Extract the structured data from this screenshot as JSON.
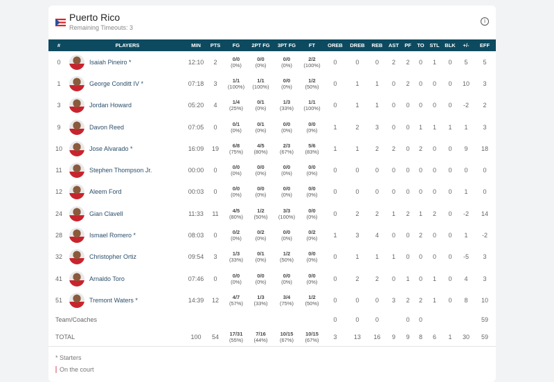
{
  "team": {
    "name": "Puerto Rico",
    "timeouts": "Remaining Timeouts: 3"
  },
  "columns": [
    "#",
    "PLAYERS",
    "MIN",
    "PTS",
    "FG",
    "2PT FG",
    "3PT FG",
    "FT",
    "OREB",
    "DREB",
    "REB",
    "AST",
    "PF",
    "TO",
    "STL",
    "BLK",
    "+/-",
    "EFF"
  ],
  "players": [
    {
      "num": "0",
      "name": "Isaiah Pineiro *",
      "min": "12:10",
      "pts": "2",
      "fg": [
        "0/0",
        "(0%)"
      ],
      "fg2": [
        "0/0",
        "(0%)"
      ],
      "fg3": [
        "0/0",
        "(0%)"
      ],
      "ft": [
        "2/2",
        "(100%)"
      ],
      "stats": [
        "0",
        "0",
        "0",
        "2",
        "2",
        "0",
        "1",
        "0",
        "5",
        "5"
      ]
    },
    {
      "num": "1",
      "name": "George Conditt IV *",
      "min": "07:18",
      "pts": "3",
      "fg": [
        "1/1",
        "(100%)"
      ],
      "fg2": [
        "1/1",
        "(100%)"
      ],
      "fg3": [
        "0/0",
        "(0%)"
      ],
      "ft": [
        "1/2",
        "(50%)"
      ],
      "stats": [
        "0",
        "1",
        "1",
        "0",
        "2",
        "0",
        "0",
        "0",
        "10",
        "3"
      ]
    },
    {
      "num": "3",
      "name": "Jordan Howard",
      "min": "05:20",
      "pts": "4",
      "fg": [
        "1/4",
        "(25%)"
      ],
      "fg2": [
        "0/1",
        "(0%)"
      ],
      "fg3": [
        "1/3",
        "(33%)"
      ],
      "ft": [
        "1/1",
        "(100%)"
      ],
      "stats": [
        "0",
        "1",
        "1",
        "0",
        "0",
        "0",
        "0",
        "0",
        "-2",
        "2"
      ]
    },
    {
      "num": "9",
      "name": "Davon Reed",
      "min": "07:05",
      "pts": "0",
      "fg": [
        "0/1",
        "(0%)"
      ],
      "fg2": [
        "0/1",
        "(0%)"
      ],
      "fg3": [
        "0/0",
        "(0%)"
      ],
      "ft": [
        "0/0",
        "(0%)"
      ],
      "stats": [
        "1",
        "2",
        "3",
        "0",
        "0",
        "1",
        "1",
        "1",
        "1",
        "3"
      ]
    },
    {
      "num": "10",
      "name": "Jose Alvarado *",
      "min": "16:09",
      "pts": "19",
      "fg": [
        "6/8",
        "(75%)"
      ],
      "fg2": [
        "4/5",
        "(80%)"
      ],
      "fg3": [
        "2/3",
        "(67%)"
      ],
      "ft": [
        "5/6",
        "(83%)"
      ],
      "stats": [
        "1",
        "1",
        "2",
        "2",
        "0",
        "2",
        "0",
        "0",
        "9",
        "18"
      ]
    },
    {
      "num": "11",
      "name": "Stephen Thompson Jr.",
      "min": "00:00",
      "pts": "0",
      "fg": [
        "0/0",
        "(0%)"
      ],
      "fg2": [
        "0/0",
        "(0%)"
      ],
      "fg3": [
        "0/0",
        "(0%)"
      ],
      "ft": [
        "0/0",
        "(0%)"
      ],
      "stats": [
        "0",
        "0",
        "0",
        "0",
        "0",
        "0",
        "0",
        "0",
        "0",
        "0"
      ]
    },
    {
      "num": "12",
      "name": "Aleem Ford",
      "min": "00:03",
      "pts": "0",
      "fg": [
        "0/0",
        "(0%)"
      ],
      "fg2": [
        "0/0",
        "(0%)"
      ],
      "fg3": [
        "0/0",
        "(0%)"
      ],
      "ft": [
        "0/0",
        "(0%)"
      ],
      "stats": [
        "0",
        "0",
        "0",
        "0",
        "0",
        "0",
        "0",
        "0",
        "1",
        "0"
      ]
    },
    {
      "num": "24",
      "name": "Gian Clavell",
      "min": "11:33",
      "pts": "11",
      "fg": [
        "4/5",
        "(80%)"
      ],
      "fg2": [
        "1/2",
        "(50%)"
      ],
      "fg3": [
        "3/3",
        "(100%)"
      ],
      "ft": [
        "0/0",
        "(0%)"
      ],
      "stats": [
        "0",
        "2",
        "2",
        "1",
        "2",
        "1",
        "2",
        "0",
        "-2",
        "14"
      ]
    },
    {
      "num": "28",
      "name": "Ismael Romero *",
      "min": "08:03",
      "pts": "0",
      "fg": [
        "0/2",
        "(0%)"
      ],
      "fg2": [
        "0/2",
        "(0%)"
      ],
      "fg3": [
        "0/0",
        "(0%)"
      ],
      "ft": [
        "0/2",
        "(0%)"
      ],
      "stats": [
        "1",
        "3",
        "4",
        "0",
        "0",
        "2",
        "0",
        "0",
        "1",
        "-2"
      ]
    },
    {
      "num": "32",
      "name": "Christopher Ortiz",
      "min": "09:54",
      "pts": "3",
      "fg": [
        "1/3",
        "(33%)"
      ],
      "fg2": [
        "0/1",
        "(0%)"
      ],
      "fg3": [
        "1/2",
        "(50%)"
      ],
      "ft": [
        "0/0",
        "(0%)"
      ],
      "stats": [
        "0",
        "1",
        "1",
        "1",
        "0",
        "0",
        "0",
        "0",
        "-5",
        "3"
      ]
    },
    {
      "num": "41",
      "name": "Arnaldo Toro",
      "min": "07:46",
      "pts": "0",
      "fg": [
        "0/0",
        "(0%)"
      ],
      "fg2": [
        "0/0",
        "(0%)"
      ],
      "fg3": [
        "0/0",
        "(0%)"
      ],
      "ft": [
        "0/0",
        "(0%)"
      ],
      "stats": [
        "0",
        "2",
        "2",
        "0",
        "1",
        "0",
        "1",
        "0",
        "4",
        "3"
      ]
    },
    {
      "num": "51",
      "name": "Tremont Waters *",
      "min": "14:39",
      "pts": "12",
      "fg": [
        "4/7",
        "(57%)"
      ],
      "fg2": [
        "1/3",
        "(33%)"
      ],
      "fg3": [
        "3/4",
        "(75%)"
      ],
      "ft": [
        "1/2",
        "(50%)"
      ],
      "stats": [
        "0",
        "0",
        "0",
        "3",
        "2",
        "2",
        "1",
        "0",
        "8",
        "10"
      ]
    }
  ],
  "team_row": {
    "label": "Team/Coaches",
    "stats": [
      "0",
      "0",
      "0",
      "",
      "0",
      "0",
      "",
      "",
      "",
      "59"
    ]
  },
  "total_row": {
    "label": "TOTAL",
    "min": "100",
    "pts": "54",
    "fg": [
      "17/31",
      "(55%)"
    ],
    "fg2": [
      "7/16",
      "(44%)"
    ],
    "fg3": [
      "10/15",
      "(67%)"
    ],
    "ft": [
      "10/15",
      "(67%)"
    ],
    "stats": [
      "3",
      "13",
      "16",
      "9",
      "9",
      "8",
      "6",
      "1",
      "30",
      "59"
    ]
  },
  "footer": {
    "starters": "* Starters",
    "on_court": "On the court"
  }
}
